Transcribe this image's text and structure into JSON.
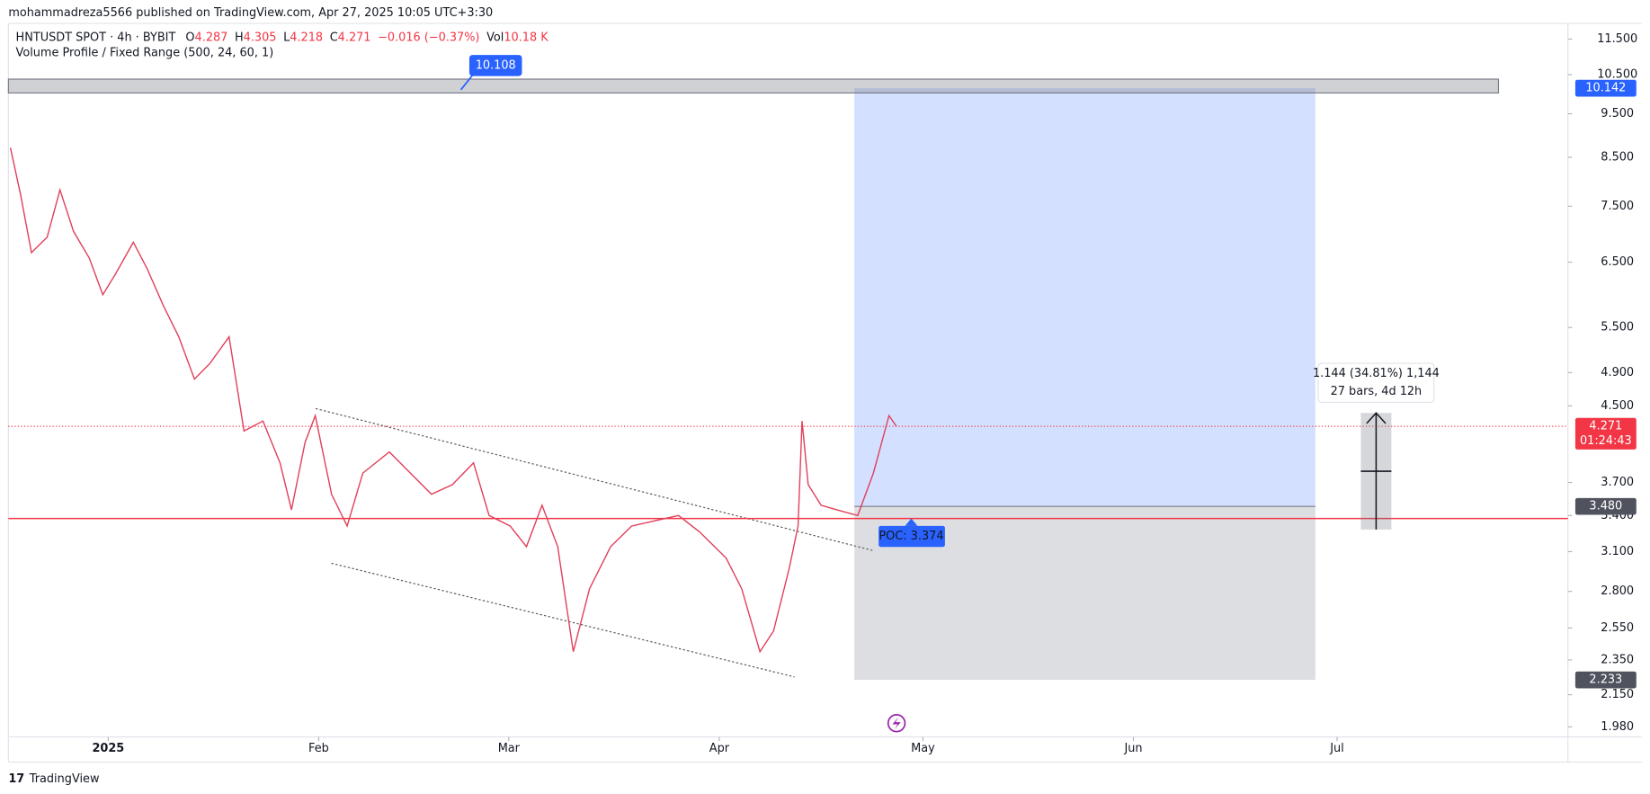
{
  "header": {
    "published": "mohammadreza5566 published on TradingView.com, Apr 27, 2025 10:05 UTC+3:30"
  },
  "chart_data": {
    "type": "line",
    "title": "HNTUSDT SPOT · 4h · BYBIT",
    "ohlc": [
      {
        "name": "O",
        "value": 4.287
      },
      {
        "name": "H",
        "value": 4.305
      },
      {
        "name": "L",
        "value": 4.218
      },
      {
        "name": "C",
        "value": 4.271
      }
    ],
    "change": "−0.016 (−0.37%)",
    "volume_name": "Vol",
    "volume": "10.18 K",
    "subtitle": "Volume Profile / Fixed Range (500, 24, 60, 1)",
    "color": "#e0405a",
    "x": [
      -14.4,
      -12.9,
      -11.3,
      -9.0,
      -7.1,
      -5.1,
      -2.8,
      -0.8,
      1.1,
      3.7,
      5.7,
      8.1,
      10.4,
      12.7,
      15.0,
      17.8,
      20.0,
      22.8,
      25.3,
      27.0,
      29.0,
      30.5,
      32.9,
      35.2,
      37.5,
      41.4,
      44.5,
      47.6,
      50.7,
      53.8,
      56.1,
      59.2,
      61.6,
      63.9,
      66.2,
      68.5,
      70.9,
      74.0,
      77.1,
      80.2,
      84.0,
      87.1,
      91.0,
      93.3,
      96.0,
      98.0,
      100.3,
      101.6,
      102.2,
      103.1,
      105.0,
      107.3,
      110.4,
      112.7,
      115.0,
      116.1
    ],
    "values": [
      8.71,
      7.72,
      6.66,
      6.93,
      7.82,
      7.03,
      6.57,
      5.98,
      6.31,
      6.84,
      6.4,
      5.82,
      5.37,
      4.82,
      5.02,
      5.37,
      4.22,
      4.33,
      3.89,
      3.45,
      4.1,
      4.39,
      3.59,
      3.31,
      3.79,
      4.0,
      3.79,
      3.59,
      3.68,
      3.89,
      3.4,
      3.31,
      3.14,
      3.49,
      3.14,
      2.4,
      2.82,
      3.14,
      3.31,
      3.35,
      3.4,
      3.26,
      3.05,
      2.82,
      2.4,
      2.53,
      2.97,
      3.31,
      4.33,
      3.68,
      3.49,
      3.45,
      3.4,
      3.79,
      4.39,
      4.271
    ],
    "xlim": [
      -14.7,
      215
    ],
    "xticks": [
      {
        "value": 0,
        "label": "2025"
      },
      {
        "value": 31,
        "label": "Feb"
      },
      {
        "value": 59,
        "label": "Mar"
      },
      {
        "value": 90,
        "label": "Apr"
      },
      {
        "value": 120,
        "label": "May"
      },
      {
        "value": 151,
        "label": "Jun"
      },
      {
        "value": 181,
        "label": "Jul"
      }
    ],
    "ylim": [
      1.93,
      11.97
    ],
    "log_scale": true,
    "yticks": [
      {
        "value": 1.98,
        "label": "1.980"
      },
      {
        "value": 2.15,
        "label": "2.150"
      },
      {
        "value": 2.35,
        "label": "2.350"
      },
      {
        "value": 2.55,
        "label": "2.550"
      },
      {
        "value": 2.8,
        "label": "2.800"
      },
      {
        "value": 3.1,
        "label": "3.100"
      },
      {
        "value": 3.4,
        "label": "3.400"
      },
      {
        "value": 3.7,
        "label": "3.700"
      },
      {
        "value": 4.5,
        "label": "4.500"
      },
      {
        "value": 4.9,
        "label": "4.900"
      },
      {
        "value": 5.5,
        "label": "5.500"
      },
      {
        "value": 6.5,
        "label": "6.500"
      },
      {
        "value": 7.5,
        "label": "7.500"
      },
      {
        "value": 8.5,
        "label": "8.500"
      },
      {
        "value": 9.5,
        "label": "9.500"
      },
      {
        "value": 10.5,
        "label": "10.500"
      },
      {
        "value": 11.5,
        "label": "11.500"
      }
    ],
    "resistance_zone": {
      "low": 10.02,
      "high": 10.38
    },
    "resistance_label": 10.108,
    "position": {
      "start_day": 109.9,
      "end_day": 177.8,
      "target": 10.142,
      "entry": {
        "value": 3.48,
        "label": "3.480"
      },
      "stop": 2.233
    },
    "last_price": 4.271,
    "countdown": "01:24:43",
    "poc": {
      "value": 3.374,
      "label": "POC: 3.374"
    },
    "measure": {
      "from": 3.28,
      "to": 4.42,
      "start_day": 184.5,
      "end_day": 189,
      "lines": [
        "1.144 (34.81%) 1,144",
        "27 bars, 4d 12h"
      ]
    },
    "footer": "TradingView"
  }
}
